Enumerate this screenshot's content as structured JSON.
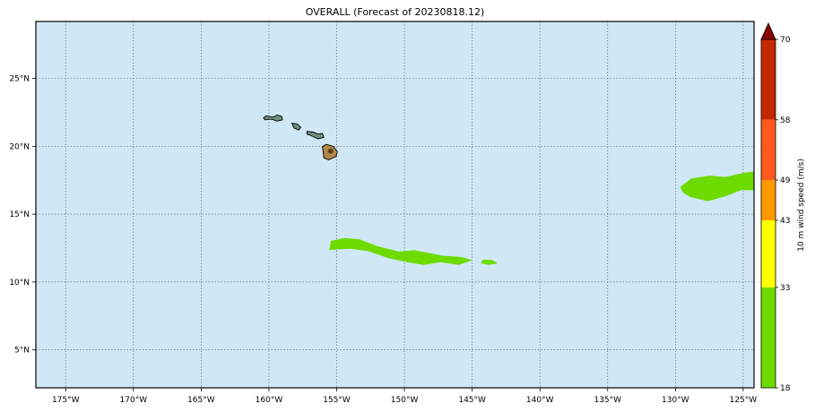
{
  "title": "OVERALL (Forecast of 20230818.12)",
  "map": {
    "lon_range": [
      -177.2,
      -124.2
    ],
    "lat_range": [
      2.2,
      29.2
    ],
    "ocean_color": "#d0e8f6",
    "grid_style": "dotted",
    "lon_ticks": [
      {
        "value": -175,
        "label": "175°W"
      },
      {
        "value": -170,
        "label": "170°W"
      },
      {
        "value": -165,
        "label": "165°W"
      },
      {
        "value": -160,
        "label": "160°W"
      },
      {
        "value": -155,
        "label": "155°W"
      },
      {
        "value": -150,
        "label": "150°W"
      },
      {
        "value": -145,
        "label": "145°W"
      },
      {
        "value": -140,
        "label": "140°W"
      },
      {
        "value": -135,
        "label": "135°W"
      },
      {
        "value": -130,
        "label": "130°W"
      },
      {
        "value": -125,
        "label": "125°W"
      }
    ],
    "lat_ticks": [
      {
        "value": 5,
        "label": "5°N"
      },
      {
        "value": 10,
        "label": "10°N"
      },
      {
        "value": 15,
        "label": "15°N"
      },
      {
        "value": 20,
        "label": "20°N"
      },
      {
        "value": 25,
        "label": "25°N"
      }
    ],
    "islands": [
      {
        "name": "Niihau-Kauai",
        "lon": -159.5,
        "lat": 22.1
      },
      {
        "name": "Oahu",
        "lon": -158.0,
        "lat": 21.5
      },
      {
        "name": "Molokai-Maui",
        "lon": -156.6,
        "lat": 20.9
      },
      {
        "name": "Hawaii",
        "lon": -155.5,
        "lat": 19.6
      }
    ],
    "wind_areas": [
      {
        "name": "wind-swath-south-of-hawaii",
        "color": "#6edb00",
        "points": [
          [
            -155.4,
            13.0
          ],
          [
            -154.4,
            13.2
          ],
          [
            -153.3,
            13.1
          ],
          [
            -152.0,
            12.6
          ],
          [
            -150.4,
            12.2
          ],
          [
            -149.3,
            12.3
          ],
          [
            -148.2,
            12.1
          ],
          [
            -147.2,
            11.9
          ],
          [
            -145.8,
            11.8
          ],
          [
            -145.1,
            11.6
          ],
          [
            -146.0,
            11.3
          ],
          [
            -147.3,
            11.5
          ],
          [
            -148.6,
            11.3
          ],
          [
            -149.8,
            11.5
          ],
          [
            -151.2,
            11.8
          ],
          [
            -152.6,
            12.3
          ],
          [
            -154.0,
            12.5
          ],
          [
            -155.5,
            12.4
          ]
        ]
      },
      {
        "name": "wind-speck-east",
        "color": "#6edb00",
        "points": [
          [
            -144.2,
            11.6
          ],
          [
            -143.6,
            11.6
          ],
          [
            -143.2,
            11.4
          ],
          [
            -143.8,
            11.3
          ],
          [
            -144.3,
            11.4
          ]
        ]
      },
      {
        "name": "wind-swath-east",
        "color": "#6edb00",
        "points": [
          [
            -129.6,
            17.0
          ],
          [
            -128.8,
            17.6
          ],
          [
            -127.5,
            17.8
          ],
          [
            -126.3,
            17.7
          ],
          [
            -125.0,
            18.0
          ],
          [
            -124.2,
            18.1
          ],
          [
            -124.2,
            16.8
          ],
          [
            -125.2,
            16.8
          ],
          [
            -126.2,
            16.4
          ],
          [
            -127.6,
            16.0
          ],
          [
            -128.9,
            16.3
          ],
          [
            -129.4,
            16.6
          ]
        ]
      }
    ]
  },
  "colorbar": {
    "label": "10 m wind speed (m/s)",
    "levels": [
      18,
      33,
      43,
      49,
      58,
      70
    ],
    "colors": [
      "#6edb00",
      "#ffff00",
      "#ff9900",
      "#ff5a1c",
      "#c42800"
    ],
    "extend_color": "#8b0000"
  }
}
